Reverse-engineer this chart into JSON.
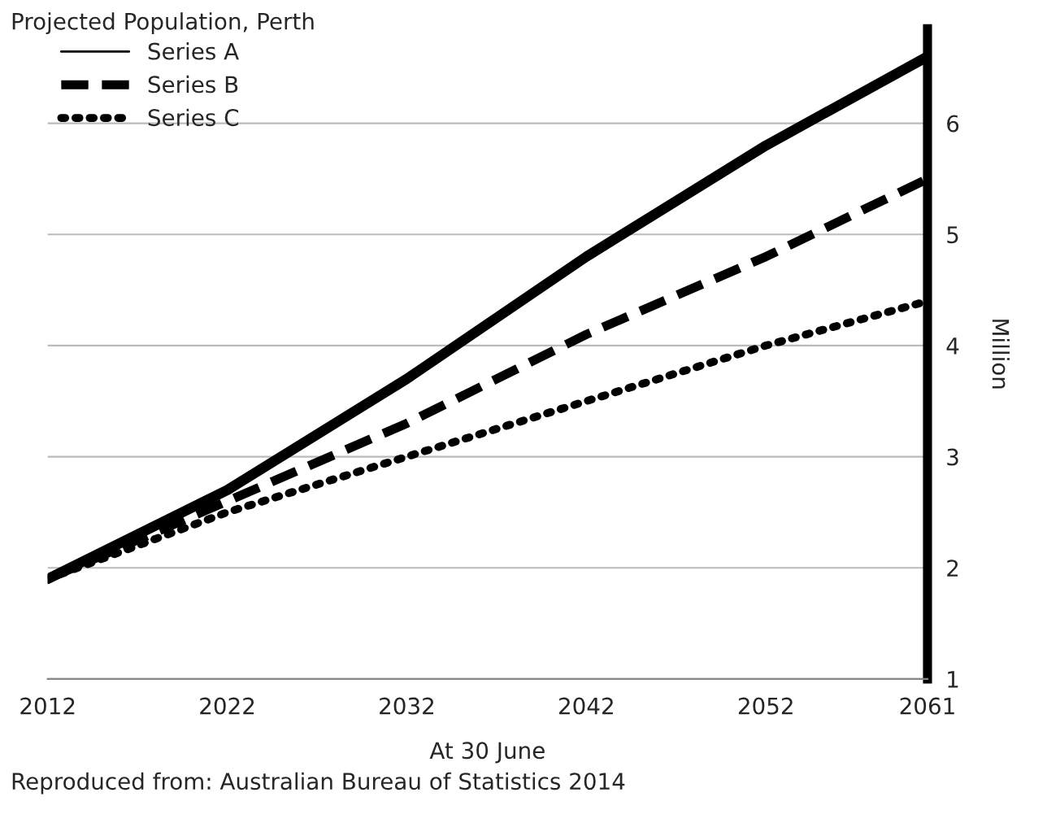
{
  "chart_data": {
    "type": "line",
    "title": "Projected Population, Perth",
    "xlabel": "At 30 June",
    "ylabel": "Million",
    "x": [
      2012,
      2022,
      2032,
      2042,
      2052,
      2061
    ],
    "series": [
      {
        "name": "Series A",
        "color": "#000000",
        "line_style": "solid",
        "values": [
          1.9,
          2.7,
          3.7,
          4.8,
          5.8,
          6.6
        ]
      },
      {
        "name": "Series B",
        "color": "#000000",
        "line_style": "dashed",
        "values": [
          1.9,
          2.6,
          3.3,
          4.1,
          4.8,
          5.5
        ]
      },
      {
        "name": "Series C",
        "color": "#000000",
        "line_style": "dotted",
        "values": [
          1.9,
          2.5,
          3.0,
          3.5,
          4.0,
          4.4
        ]
      }
    ],
    "xlim": [
      2012,
      2061
    ],
    "xticks": [
      2012,
      2022,
      2032,
      2042,
      2052,
      2061
    ],
    "ylim": [
      1,
      6.85
    ],
    "yticks": [
      1,
      2,
      3,
      4,
      5,
      6
    ],
    "grid": "y",
    "legend": "top left",
    "annotations": [
      "Reproduced from: Australian Bureau of Statistics 2014"
    ]
  }
}
